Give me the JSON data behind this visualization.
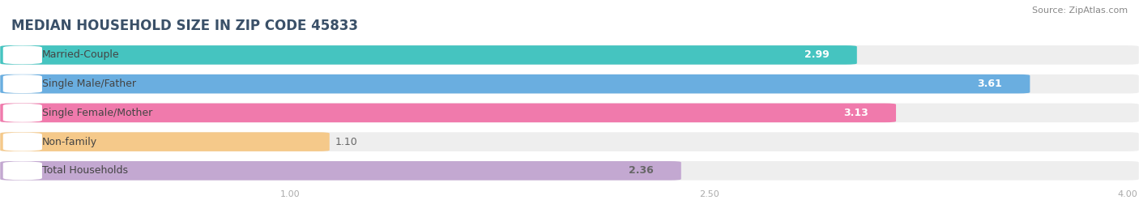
{
  "title": "MEDIAN HOUSEHOLD SIZE IN ZIP CODE 45833",
  "source": "Source: ZipAtlas.com",
  "categories": [
    "Married-Couple",
    "Single Male/Father",
    "Single Female/Mother",
    "Non-family",
    "Total Households"
  ],
  "values": [
    2.99,
    3.61,
    3.13,
    1.1,
    2.36
  ],
  "bar_colors": [
    "#45C4C0",
    "#6AAEE0",
    "#F07AAC",
    "#F5C98A",
    "#C3A8D1"
  ],
  "label_text_colors": [
    "#444444",
    "#444444",
    "#444444",
    "#444444",
    "#444444"
  ],
  "value_colors": [
    "#ffffff",
    "#ffffff",
    "#ffffff",
    "#666666",
    "#666666"
  ],
  "xlim_start": 0.0,
  "xlim_end": 4.0,
  "xticks": [
    1.0,
    2.5,
    4.0
  ],
  "background_color": "#ffffff",
  "bar_bg_color": "#eeeeee",
  "title_fontsize": 12,
  "source_fontsize": 8,
  "label_fontsize": 9,
  "value_fontsize": 9,
  "title_color": "#3a5068",
  "source_color": "#888888",
  "tick_color": "#aaaaaa"
}
